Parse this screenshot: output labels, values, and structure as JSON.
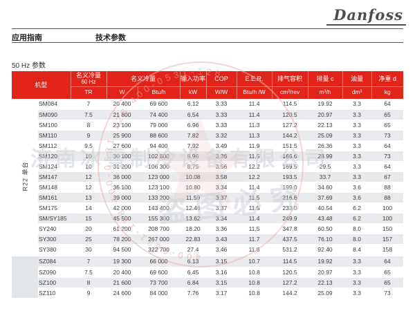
{
  "logo": {
    "text": "Danfoss"
  },
  "nav": {
    "left": "应用指南",
    "right": "技术参数"
  },
  "section_title": "50 Hz 参数",
  "table": {
    "headers": {
      "model": "机型",
      "cap60_line1": "名义冷量",
      "cap60_line2": "60 Hz",
      "cap60_unit": "TR",
      "cap_label": "名义冷量",
      "cap_unit_w": "W",
      "cap_unit_btu": "Btu/h",
      "power_label": "输入功率",
      "power_unit": "kW",
      "cop_label": "COP",
      "cop_unit": "W/W",
      "eer_label": "E.E.R.",
      "eer_unit": "Btu/h /W",
      "disp_label": "排气容积",
      "disp_unit": "cm³/rev",
      "swept_label": "排量 c",
      "swept_unit": "m³/h",
      "oil_label": "油量",
      "oil_unit": "dm³",
      "weight_label": "净重 d",
      "weight_unit": "kg"
    },
    "groups": [
      {
        "label": "R22 单台",
        "first_row_shade": "white",
        "rows": [
          [
            "SM084",
            "7",
            "20 400",
            "69 600",
            "6.12",
            "3.33",
            "11.4",
            "114.5",
            "19.92",
            "3.3",
            "64"
          ],
          [
            "SM090",
            "7.5",
            "21 800",
            "74 400",
            "6.54",
            "3.33",
            "11.4",
            "120.5",
            "20.97",
            "3.3",
            "65"
          ],
          [
            "SM100",
            "8",
            "23 100",
            "79 000",
            "6.96",
            "3.33",
            "11.3",
            "127.2",
            "22.13",
            "3.3",
            "65"
          ],
          [
            "SM110",
            "9",
            "25 900",
            "88 600",
            "7.82",
            "3.32",
            "11.3",
            "144.2",
            "25.09",
            "3.3",
            "73"
          ],
          [
            "SM112",
            "9.5",
            "27 600",
            "94 400",
            "7.92",
            "3.49",
            "11.9",
            "151.5",
            "26.36",
            "3.3",
            "64"
          ],
          [
            "SM120",
            "10",
            "30 100",
            "102 800",
            "8.96",
            "3.36",
            "11.5",
            "166.6",
            "28.99",
            "3.3",
            "73"
          ],
          [
            "SM124",
            "10",
            "31 200",
            "106 300",
            "8.75",
            "3.56",
            "12.2",
            "169.5",
            "29.5",
            "3.3",
            "64"
          ],
          [
            "SM147",
            "12",
            "36 000",
            "123 000",
            "10.08",
            "3.58",
            "12.2",
            "193.5",
            "33.7",
            "3.3",
            "67"
          ],
          [
            "SM148",
            "12",
            "36 100",
            "123 100",
            "10.80",
            "3.34",
            "11.4",
            "199.0",
            "34.60",
            "3.6",
            "88"
          ],
          [
            "SM161",
            "13",
            "39 000",
            "133 200",
            "11.59",
            "3.37",
            "11.5",
            "216.6",
            "37.69",
            "3.6",
            "88"
          ],
          [
            "SM175",
            "14",
            "42 000",
            "143 400",
            "12.46",
            "3.37",
            "11.5",
            "233.0",
            "40.54",
            "6.2",
            "100"
          ],
          [
            "SM/SY185",
            "15",
            "45 500",
            "155 300",
            "13.62",
            "3.34",
            "11.4",
            "249.9",
            "43.48",
            "6.2",
            "100"
          ],
          [
            "SY240",
            "20",
            "61 200",
            "208 700",
            "18.20",
            "3.36",
            "11.5",
            "347.8",
            "60.50",
            "8.0",
            "150"
          ],
          [
            "SY300",
            "25",
            "78 200",
            "267 000",
            "22.83",
            "3.43",
            "11.7",
            "437.5",
            "76.10",
            "8.0",
            "157"
          ],
          [
            "SY380",
            "30",
            "94 500",
            "322 700",
            "27.4",
            "3.46",
            "11.8",
            "531.2",
            "92.40",
            "8.4",
            "158"
          ]
        ]
      },
      {
        "label": "",
        "first_row_shade": "gray",
        "rows": [
          [
            "SZ084",
            "7",
            "19 300",
            "66 000",
            "6.13",
            "3.15",
            "10.7",
            "114.5",
            "19.92",
            "3.3",
            "64"
          ],
          [
            "SZ090",
            "7.5",
            "20 400",
            "69 600",
            "6.45",
            "3.16",
            "10.8",
            "120.5",
            "20.97",
            "3.3",
            "65"
          ],
          [
            "SZ100",
            "8",
            "21 600",
            "73 700",
            "6.84",
            "3.15",
            "10.8",
            "127.2",
            "22.13",
            "3.3",
            "65"
          ],
          [
            "SZ110",
            "9",
            "24 600",
            "84 000",
            "7.76",
            "3.17",
            "10.8",
            "144.2",
            "25.09",
            "3.3",
            "73"
          ]
        ]
      }
    ]
  },
  "watermark": {
    "company": "济南冰雪制冷设备有限公司",
    "warning": "盗图必究",
    "phone_arc": "400-0531-128   400-0531-128   400-0531-128",
    "seal_color": "#eab3ad",
    "text_color": "#cdd1d6"
  },
  "colors": {
    "header_red": "#e2231a",
    "row_gray": "#e8eaed"
  }
}
